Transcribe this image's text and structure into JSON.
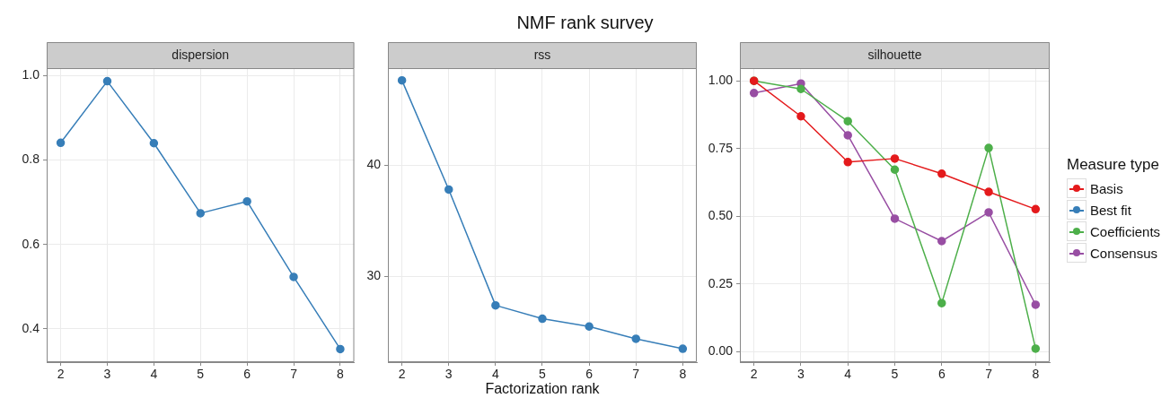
{
  "chart_data": [
    {
      "type": "other",
      "title": "NMF rank survey"
    },
    {
      "type": "line",
      "title": "dispersion",
      "x": [
        2,
        3,
        4,
        5,
        6,
        7,
        8
      ],
      "xlim": [
        1.7,
        8.3
      ],
      "xticks": [
        2,
        3,
        4,
        5,
        6,
        7,
        8
      ],
      "ylim": [
        0.321,
        1.018
      ],
      "yticks": [
        {
          "value": 0.4,
          "label": "0.4"
        },
        {
          "value": 0.6,
          "label": "0.6"
        },
        {
          "value": 0.8,
          "label": "0.8"
        },
        {
          "value": 1,
          "label": "1.0"
        }
      ],
      "grid": true,
      "marker": "circle",
      "legend": "right",
      "series": [
        {
          "name": "Best fit",
          "color": "#377eb8",
          "values": [
            0.841,
            0.987,
            0.84,
            0.674,
            0.702,
            0.523,
            0.352
          ]
        }
      ]
    },
    {
      "type": "line",
      "title": "rss",
      "xlabel": "Factorization rank",
      "x": [
        2,
        3,
        4,
        5,
        6,
        7,
        8
      ],
      "xlim": [
        1.7,
        8.3
      ],
      "xticks": [
        2,
        3,
        4,
        5,
        6,
        7,
        8
      ],
      "ylim": [
        22.3,
        48.7
      ],
      "yticks": [
        30,
        40
      ],
      "grid": true,
      "marker": "circle",
      "legend": "right",
      "series": [
        {
          "name": "Best fit",
          "color": "#377eb8",
          "values": [
            47.6,
            37.8,
            27.4,
            26.2,
            25.5,
            24.4,
            23.5
          ]
        }
      ]
    },
    {
      "type": "line",
      "title": "silhouette",
      "x": [
        2,
        3,
        4,
        5,
        6,
        7,
        8
      ],
      "xlim": [
        1.7,
        8.3
      ],
      "xticks": [
        2,
        3,
        4,
        5,
        6,
        7,
        8
      ],
      "ylim": [
        -0.039,
        1.047
      ],
      "yticks": [
        {
          "value": 0,
          "label": "0.00"
        },
        {
          "value": 0.25,
          "label": "0.25"
        },
        {
          "value": 0.5,
          "label": "0.50"
        },
        {
          "value": 0.75,
          "label": "0.75"
        },
        {
          "value": 1,
          "label": "1.00"
        }
      ],
      "grid": true,
      "marker": "circle",
      "legend": "right",
      "legend_title": "Measure type",
      "series": [
        {
          "name": "Basis",
          "color": "#e41a1c",
          "values": [
            1.0,
            0.869,
            0.7,
            0.713,
            0.657,
            0.59,
            0.526
          ]
        },
        {
          "name": "Coefficients",
          "color": "#4daf4a",
          "values": [
            1.0,
            0.97,
            0.851,
            0.672,
            0.179,
            0.752,
            0.011
          ]
        },
        {
          "name": "Consensus",
          "color": "#984ea3",
          "values": [
            0.955,
            0.99,
            0.799,
            0.491,
            0.408,
            0.514,
            0.173
          ]
        }
      ]
    }
  ]
}
